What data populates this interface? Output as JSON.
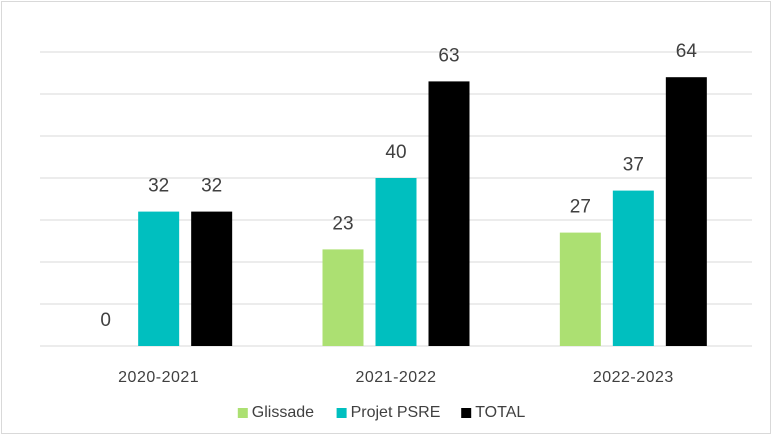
{
  "chart_data": {
    "type": "bar",
    "categories": [
      "2020-2021",
      "2021-2022",
      "2022-2023"
    ],
    "series": [
      {
        "name": "Glissade",
        "color": "#ace072",
        "values": [
          0,
          23,
          27
        ]
      },
      {
        "name": "Projet PSRE",
        "color": "#00bfbf",
        "values": [
          32,
          40,
          37
        ]
      },
      {
        "name": "TOTAL",
        "color": "#000000",
        "values": [
          32,
          63,
          64
        ]
      }
    ],
    "ylim": [
      0,
      70
    ],
    "yticks": [
      0,
      10,
      20,
      30,
      40,
      50,
      60,
      70
    ],
    "grid": true,
    "legend": "bottom"
  }
}
